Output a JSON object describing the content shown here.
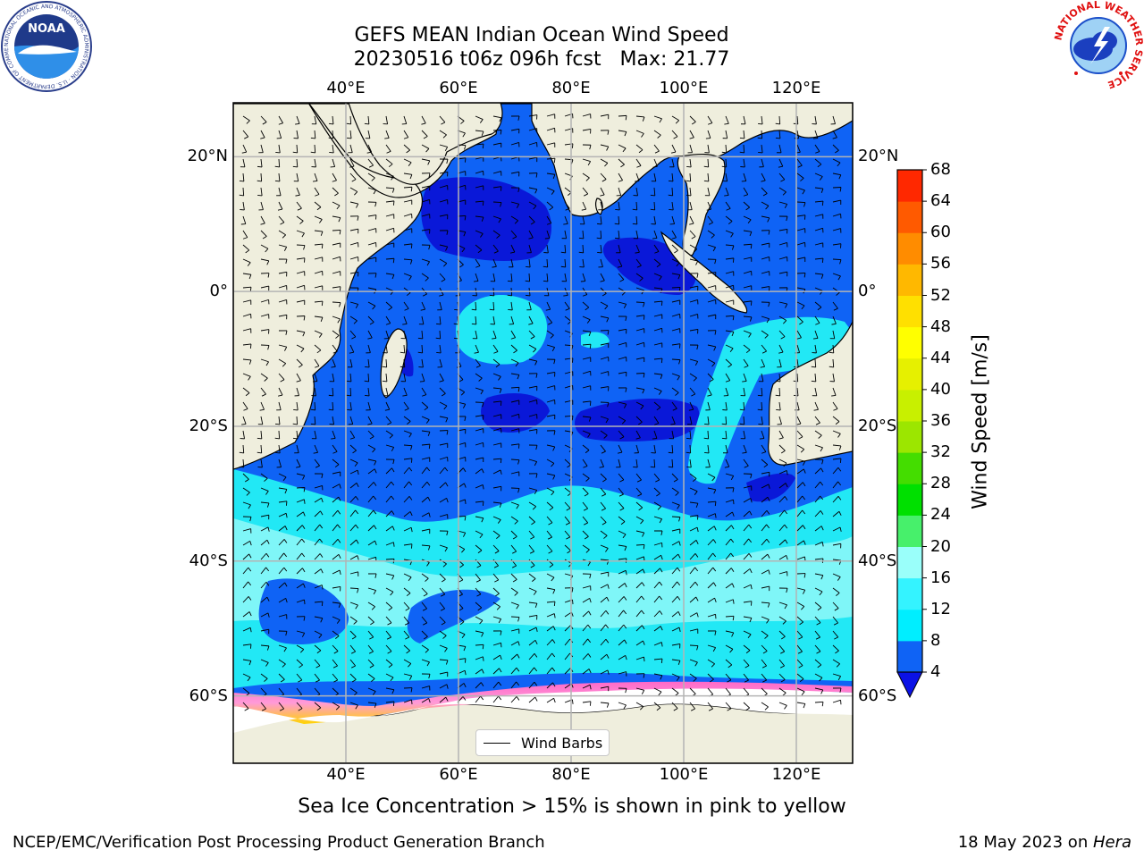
{
  "title": {
    "line1": "GEFS MEAN Indian Ocean Wind Speed",
    "line2": "20230516 t06z 096h fcst   Max: 21.77"
  },
  "map": {
    "lon_range": [
      20,
      130
    ],
    "lat_range": [
      -70,
      28
    ],
    "lon_ticks": [
      {
        "value": 40,
        "label": "40°E"
      },
      {
        "value": 60,
        "label": "60°E"
      },
      {
        "value": 80,
        "label": "80°E"
      },
      {
        "value": 100,
        "label": "100°E"
      },
      {
        "value": 120,
        "label": "120°E"
      }
    ],
    "lat_ticks": [
      {
        "value": 20,
        "label": "20°N"
      },
      {
        "value": 0,
        "label": "0°"
      },
      {
        "value": -20,
        "label": "20°S"
      },
      {
        "value": -40,
        "label": "40°S"
      },
      {
        "value": -60,
        "label": "60°S"
      }
    ],
    "colors": {
      "land": "#efeedd",
      "ocean_base": "#0f63f5",
      "calm_zone": "#0a18d8",
      "mid_speed": "#22e8f5",
      "high_speed": "#8ff8f8",
      "ice_white": "#ffffff",
      "ice_pink": "#ff69c8",
      "ice_yellow": "#ffd400",
      "grid": "#b4b4b4"
    },
    "legend_label": "Wind Barbs"
  },
  "colorbar": {
    "label": "Wind Speed [m/s]",
    "ticks": [
      "4",
      "8",
      "12",
      "16",
      "20",
      "24",
      "28",
      "32",
      "36",
      "40",
      "44",
      "48",
      "52",
      "56",
      "60",
      "64",
      "68"
    ],
    "colors": [
      "#0f63f5",
      "#00eeff",
      "#34f3ff",
      "#9afffa",
      "#47f06b",
      "#00e000",
      "#44dd00",
      "#9ce600",
      "#c8f000",
      "#e6f000",
      "#ffff00",
      "#ffe000",
      "#ffb800",
      "#ff8c00",
      "#ff5a00",
      "#ff2800",
      "#ff0000"
    ],
    "extend_color": "#0b12e6"
  },
  "footer": {
    "ice_note": "Sea Ice Concentration > 15% is shown in pink to yellow",
    "left": "NCEP/EMC/Verification Post Processing Product Generation Branch",
    "right_date": "18 May 2023 on ",
    "right_machine": "Hera"
  },
  "logos": {
    "noaa_text": "NOAA",
    "noaa_ring": "NATIONAL OCEANIC AND ATMOSPHERIC ADMINISTRATION · U.S. DEPARTMENT OF COMMERCE",
    "nws_ring": "NATIONAL WEATHER SERVICE"
  }
}
